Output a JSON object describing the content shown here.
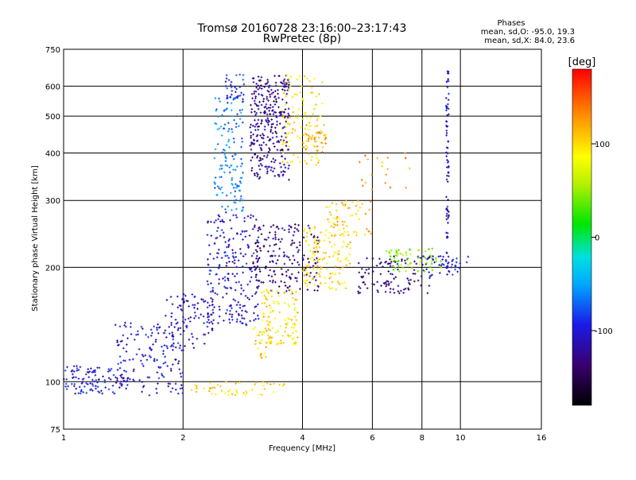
{
  "chart_data": {
    "type": "scatter",
    "title": "Tromsø 20160728 23:16:00–23:17:43",
    "subtitle": "RwPretec (8p)",
    "xlabel": "Frequency [MHz]",
    "ylabel": "Stationary phase Virtual Height [km]",
    "x_scale": "log2",
    "y_scale": "log",
    "xlim": [
      1,
      16
    ],
    "ylim": [
      75,
      750
    ],
    "x_ticks": [
      1,
      2,
      4,
      6,
      8,
      10,
      16
    ],
    "y_ticks": [
      75,
      100,
      200,
      300,
      400,
      500,
      600,
      750
    ],
    "grid": true,
    "phase_box": {
      "title": "Phases",
      "line1": "mean, sd,O:  -95.0, 19.3",
      "line2": "mean, sd,X:  84.0, 23.6"
    },
    "colorbar": {
      "label": "[deg]",
      "range": [
        -180,
        180
      ],
      "ticks": [
        100,
        0,
        -100
      ]
    },
    "clusters": [
      {
        "x": [
          1.0,
          1.45
        ],
        "y": [
          93,
          110
        ],
        "phase": -100,
        "n": 110
      },
      {
        "x": [
          1.35,
          2.0
        ],
        "y": [
          100,
          145
        ],
        "phase": -105,
        "n": 130
      },
      {
        "x": [
          1.8,
          2.4
        ],
        "y": [
          120,
          170
        ],
        "phase": -110,
        "n": 90
      },
      {
        "x": [
          1.55,
          2.0
        ],
        "y": [
          92,
          100
        ],
        "phase": -110,
        "n": 20
      },
      {
        "x": [
          2.3,
          3.1
        ],
        "y": [
          140,
          280
        ],
        "phase": -105,
        "n": 230
      },
      {
        "x": [
          2.4,
          2.85
        ],
        "y": [
          280,
          560
        ],
        "phase": -60,
        "n": 130
      },
      {
        "x": [
          2.55,
          2.85
        ],
        "y": [
          540,
          650
        ],
        "phase": -90,
        "n": 40
      },
      {
        "x": [
          2.95,
          3.7
        ],
        "y": [
          340,
          640
        ],
        "phase": -125,
        "n": 300
      },
      {
        "x": [
          3.55,
          4.5
        ],
        "y": [
          370,
          650
        ],
        "phase": 95,
        "n": 110
      },
      {
        "x": [
          4.0,
          4.6
        ],
        "y": [
          400,
          480
        ],
        "phase": 120,
        "n": 40
      },
      {
        "x": [
          3.0,
          4.4
        ],
        "y": [
          170,
          260
        ],
        "phase": -130,
        "n": 190
      },
      {
        "x": [
          3.15,
          3.9
        ],
        "y": [
          125,
          175
        ],
        "phase": 95,
        "n": 110
      },
      {
        "x": [
          3.0,
          3.35
        ],
        "y": [
          115,
          140
        ],
        "phase": 105,
        "n": 30
      },
      {
        "x": [
          4.0,
          5.3
        ],
        "y": [
          175,
          260
        ],
        "phase": 100,
        "n": 130
      },
      {
        "x": [
          4.6,
          6.0
        ],
        "y": [
          240,
          300
        ],
        "phase": 110,
        "n": 60
      },
      {
        "x": [
          5.5,
          8.5
        ],
        "y": [
          170,
          215
        ],
        "phase": -130,
        "n": 110
      },
      {
        "x": [
          6.5,
          9.0
        ],
        "y": [
          195,
          225
        ],
        "phase": 45,
        "n": 70
      },
      {
        "x": [
          8.0,
          10.5
        ],
        "y": [
          190,
          215
        ],
        "phase": -100,
        "n": 40
      },
      {
        "x": [
          9.2,
          9.35
        ],
        "y": [
          195,
          660
        ],
        "phase": -110,
        "n": 80
      },
      {
        "x": [
          2.1,
          3.6
        ],
        "y": [
          92,
          100
        ],
        "phase": 100,
        "n": 50
      },
      {
        "x": [
          5.5,
          7.5
        ],
        "y": [
          320,
          400
        ],
        "phase": 130,
        "n": 20
      }
    ]
  }
}
